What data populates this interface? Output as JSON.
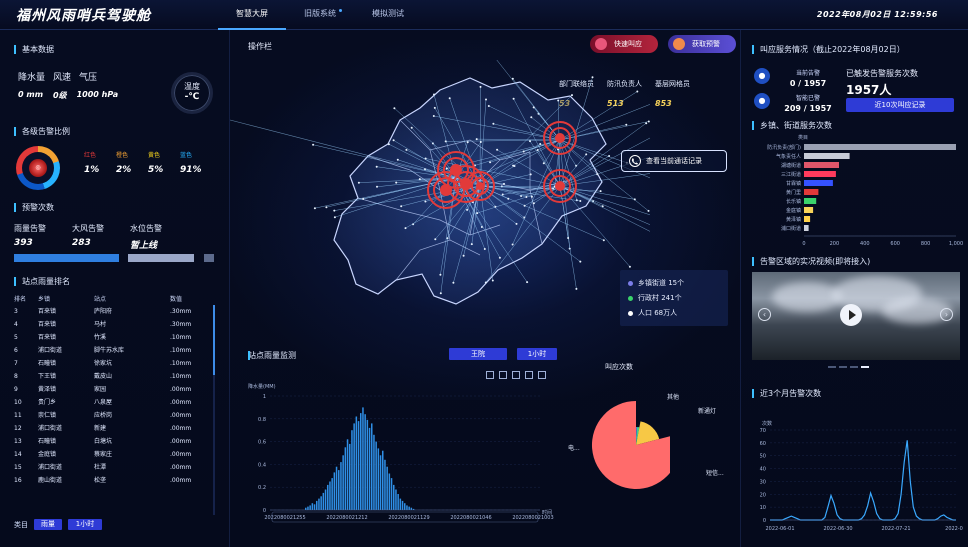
{
  "header": {
    "title": "福州风雨哨兵驾驶舱",
    "tabs": [
      "智慧大屏",
      "旧版系统",
      "模拟测试"
    ],
    "datetime": "2022年08月02日 12:59:56"
  },
  "basic_data": {
    "title": "基本数据",
    "labels": [
      "降水量",
      "风速",
      "气压"
    ],
    "values": [
      "0 mm",
      "0级",
      "1000 hPa"
    ],
    "temp_label": "温度",
    "temp_value": "-℃"
  },
  "warning_ratio": {
    "title": "各级告警比例",
    "ring_center": "◎",
    "levels": [
      {
        "label": "红色",
        "value": "1%",
        "color": "#e23939"
      },
      {
        "label": "橙色",
        "value": "2%",
        "color": "#f3a233"
      },
      {
        "label": "黄色",
        "value": "5%",
        "color": "#f2d21c"
      },
      {
        "label": "蓝色",
        "value": "91%",
        "color": "#27b3ff"
      }
    ]
  },
  "alarm_counts": {
    "title": "预警次数",
    "labels": [
      "雨量告警",
      "大风告警",
      "水位告警"
    ],
    "values": [
      "393",
      "283",
      "暂上线"
    ]
  },
  "station_rank": {
    "title": "站点雨量排名",
    "headers": [
      "排名",
      "乡镇",
      "站点",
      "数值"
    ],
    "rows": [
      [
        "3",
        "百来镇",
        "庐阳府",
        ".30mm"
      ],
      [
        "4",
        "百来镇",
        "马村",
        ".30mm"
      ],
      [
        "5",
        "百来镇",
        "竹溪",
        ".10mm"
      ],
      [
        "6",
        "浦口街道",
        "脚牛苏水库",
        ".10mm"
      ],
      [
        "7",
        "石疃镇",
        "徐家坑",
        ".10mm"
      ],
      [
        "8",
        "下王镇",
        "戴皮山",
        ".10mm"
      ],
      [
        "9",
        "黄泽镇",
        "家园",
        ".00mm"
      ],
      [
        "10",
        "贵门乡",
        "八泉屋",
        ".00mm"
      ],
      [
        "11",
        "崇仁镇",
        "应桥岗",
        ".00mm"
      ],
      [
        "12",
        "浦口街道",
        "新建",
        ".00mm"
      ],
      [
        "13",
        "石疃镇",
        "白塘坑",
        ".00mm"
      ],
      [
        "14",
        "金庭镇",
        "蔡家庄",
        ".00mm"
      ],
      [
        "15",
        "浦口街道",
        "杜潭",
        ".00mm"
      ],
      [
        "16",
        "鹿山街道",
        "松垄",
        ".00mm"
      ]
    ],
    "footer_label": "类目",
    "btn_rain": "雨量",
    "btn_hour": "1小时"
  },
  "center": {
    "toolbar": "操作栏",
    "btn_quick": "快速叫应",
    "btn_warn": "获取预警",
    "stats_labels": [
      "部门联络员",
      "防汛负责人",
      "基层网格员"
    ],
    "stats_values": [
      "53",
      "513",
      "853"
    ],
    "call_records": "查看当前通话记录",
    "legend": [
      {
        "label": "乡镇街道 15个",
        "color": "#7b7de8"
      },
      {
        "label": "行政村 241个",
        "color": "#3ad26b"
      },
      {
        "label": "人口 68万人",
        "color": "#ffffff"
      }
    ],
    "rain_monitor": {
      "title": "站点雨量监测",
      "station_btn": "王院",
      "hour_btn": "1小时",
      "ylabel": "降水量(MM)",
      "xlabel": "时间",
      "x_ticks": [
        "2022080021255",
        "2022080021212",
        "2022080021129",
        "2022080021046",
        "2022080021003"
      ],
      "y_ticks": [
        "0",
        "0.2",
        "0.4",
        "0.6",
        "0.8",
        "1"
      ]
    },
    "pie": {
      "title": "叫应次数",
      "labels": [
        "其他",
        "新通灯",
        "短信...",
        "电..."
      ]
    }
  },
  "right": {
    "svc_title": "叫应服务情况（截止2022年08月02日）",
    "current_label": "当前告警",
    "current_value": "0 / 1957",
    "warned_label": "智能已警",
    "warned_value": "209 / 1957",
    "sent_label": "已触发告警服务次数",
    "sent_value": "1957人",
    "recent_btn": "近10次叫应记录",
    "town_title": "乡镇、街道服务次数",
    "town_axis_label": "类目",
    "towns": [
      "防汛负责(部门)",
      "气象责任人",
      "湖塘街道",
      "三江街道",
      "甘霖镇",
      "黄门里",
      "长乐镇",
      "金庭镇",
      "黄泽镇",
      "浦口街道"
    ],
    "town_values": [
      1000,
      300,
      230,
      210,
      190,
      95,
      80,
      60,
      40,
      30
    ],
    "town_ticks": [
      "0",
      "200",
      "400",
      "600",
      "800",
      "1,000"
    ],
    "video_title": "告警区域的实况视频(即将接入)",
    "monthly_title": "近3个月告警次数",
    "monthly_ylabel": "次数",
    "monthly_xticks": [
      "2022-06-01",
      "2022-06-30",
      "2022-07-21",
      "2022-0"
    ],
    "monthly_yticks": [
      "0",
      "10",
      "20",
      "30",
      "40",
      "50",
      "60",
      "70"
    ]
  },
  "colors": {
    "accent": "#3dc0ff",
    "button": "#2e3bd6",
    "map_line": "#9ed4ff",
    "alarm_red": "#e23939",
    "highlight": "#f7d35a"
  },
  "chart_data": [
    {
      "type": "bar",
      "title": "站点雨量监测",
      "ylabel": "降水量(MM)",
      "xlabel": "时间",
      "ylim": [
        0,
        1
      ],
      "values": [
        0.02,
        0.03,
        0.04,
        0.06,
        0.05,
        0.08,
        0.1,
        0.12,
        0.15,
        0.18,
        0.22,
        0.25,
        0.28,
        0.33,
        0.38,
        0.35,
        0.42,
        0.48,
        0.55,
        0.62,
        0.58,
        0.7,
        0.76,
        0.82,
        0.78,
        0.85,
        0.9,
        0.84,
        0.79,
        0.72,
        0.76,
        0.66,
        0.6,
        0.54,
        0.48,
        0.52,
        0.44,
        0.38,
        0.32,
        0.28,
        0.22,
        0.18,
        0.14,
        0.1,
        0.08,
        0.06,
        0.04,
        0.03,
        0.02,
        0.01
      ]
    },
    {
      "type": "pie",
      "title": "叫应次数",
      "categories": [
        "其他",
        "新通灯",
        "短信...",
        "电..."
      ],
      "values": [
        1,
        2,
        18,
        79
      ]
    },
    {
      "type": "bar",
      "title": "乡镇、街道服务次数",
      "categories": [
        "防汛负责(部门)",
        "气象责任人",
        "湖塘街道",
        "三江街道",
        "甘霖镇",
        "黄门里",
        "长乐镇",
        "金庭镇",
        "黄泽镇",
        "浦口街道"
      ],
      "values": [
        1000,
        300,
        230,
        210,
        190,
        95,
        80,
        60,
        40,
        30
      ],
      "xlim": [
        0,
        1000
      ]
    },
    {
      "type": "line",
      "title": "近3个月告警次数",
      "ylabel": "次数",
      "ylim": [
        0,
        70
      ],
      "values": [
        0,
        0,
        0,
        0,
        0,
        1,
        2,
        3,
        2,
        1,
        0,
        0,
        0,
        0,
        0,
        0,
        0,
        0,
        2,
        10,
        19,
        13,
        4,
        1,
        0,
        0,
        0,
        0,
        0,
        0,
        1,
        4,
        11,
        21,
        14,
        5,
        1,
        0,
        0,
        0,
        0,
        1,
        5,
        20,
        45,
        62,
        30,
        10,
        3,
        1,
        0,
        0,
        0,
        0,
        0,
        1,
        3,
        4,
        2,
        1,
        0,
        0
      ]
    }
  ]
}
